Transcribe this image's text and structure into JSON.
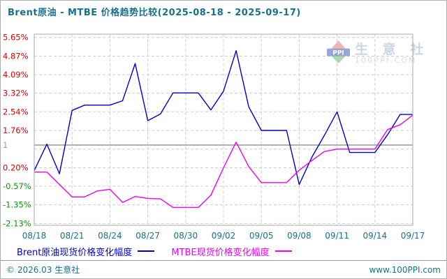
{
  "page": {
    "colors": {
      "text_teal": "#17708E",
      "plot_border": "#A8A8A8",
      "gridline": "#CCCCCC",
      "reference_line": "#A0A0A0",
      "background": "#FFFFFF"
    }
  },
  "watermark": {
    "logo_text": "PPI",
    "company": "生 意 社",
    "site": "100PPI.COM"
  },
  "footer": {
    "left": "© 2026.03 生意社",
    "right": "www.100PPI.com"
  },
  "chart_data": {
    "type": "line",
    "title": "Brent原油 - MTBE 价格趋势比较(2025-08-18 - 2025-09-17)",
    "xlabel": "",
    "ylabel": "",
    "ylim": [
      -2.13,
      5.65
    ],
    "grid": true,
    "legend_position": "bottom",
    "x_tick_labels": [
      "08/18",
      "08/21",
      "08/24",
      "08/27",
      "08/30",
      "09/02",
      "09/05",
      "09/08",
      "09/11",
      "09/14",
      "09/17"
    ],
    "y_ticks": [
      {
        "label": "5.65%",
        "value": 5.65,
        "color": "pos"
      },
      {
        "label": "4.87%",
        "value": 4.87,
        "color": "pos"
      },
      {
        "label": "4.09%",
        "value": 4.09,
        "color": "pos"
      },
      {
        "label": "3.32%",
        "value": 3.32,
        "color": "pos"
      },
      {
        "label": "2.54%",
        "value": 2.54,
        "color": "pos"
      },
      {
        "label": "1.76%",
        "value": 1.76,
        "color": "pos"
      },
      {
        "label": "1",
        "value": 1.15,
        "color": "ref"
      },
      {
        "label": "0.20%",
        "value": 0.2,
        "color": "pos"
      },
      {
        "label": "-0.57%",
        "value": -0.57,
        "color": "neg"
      },
      {
        "label": "-1.35%",
        "value": -1.35,
        "color": "neg"
      },
      {
        "label": "-2.13%",
        "value": -2.13,
        "color": "neg"
      }
    ],
    "y_gridline_values": [
      5.65,
      4.87,
      4.09,
      3.32,
      2.54,
      1.76,
      0.98,
      0.2,
      -0.57,
      -1.35,
      -2.13
    ],
    "reference_line": {
      "label": "1",
      "value": 1.15
    },
    "axis_colors": {
      "pos": "#DD0000",
      "neg": "#009900",
      "ref": "#999999",
      "dates": "#17708E"
    },
    "x": [
      "08/18",
      "08/19",
      "08/20",
      "08/21",
      "08/22",
      "08/23",
      "08/24",
      "08/25",
      "08/26",
      "08/27",
      "08/28",
      "08/29",
      "08/30",
      "08/31",
      "09/01",
      "09/02",
      "09/03",
      "09/04",
      "09/05",
      "09/06",
      "09/07",
      "09/08",
      "09/09",
      "09/10",
      "09/11",
      "09/12",
      "09/13",
      "09/14",
      "09/15",
      "09/16",
      "09/17"
    ],
    "series": [
      {
        "name": "Brent原油现货价格变化幅度",
        "color": "#0000CC",
        "values": [
          0.08,
          1.19,
          -0.05,
          2.6,
          2.82,
          2.82,
          2.82,
          3.0,
          4.56,
          2.17,
          2.45,
          3.33,
          3.33,
          3.33,
          2.62,
          3.4,
          5.1,
          2.75,
          1.76,
          1.76,
          1.76,
          -0.5,
          0.64,
          1.56,
          2.54,
          0.84,
          0.84,
          0.84,
          1.58,
          2.43,
          2.43
        ]
      },
      {
        "name": "MTBE现货价格变化幅度",
        "color": "#EE00EE",
        "values": [
          0.02,
          0.02,
          -0.5,
          -1.02,
          -1.02,
          -0.77,
          -0.7,
          -1.25,
          -1.0,
          -1.08,
          -1.1,
          -1.46,
          -1.46,
          -1.46,
          -0.95,
          0.2,
          1.27,
          0.25,
          -0.42,
          -0.42,
          -0.42,
          0.1,
          0.5,
          0.88,
          0.98,
          0.98,
          0.98,
          0.98,
          1.8,
          2.0,
          2.4
        ]
      }
    ]
  }
}
